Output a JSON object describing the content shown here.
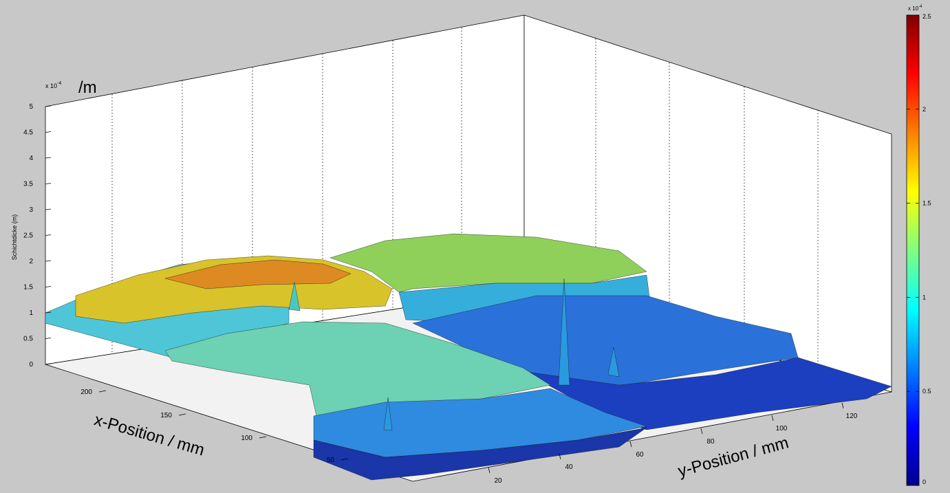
{
  "chart_data": {
    "type": "surface",
    "title": "",
    "zlabel": "Schichtdicke (m)",
    "z_unit_annotation": "/m",
    "z_exponent_label": "x 10",
    "z_exponent_power": "-4",
    "xlabel": "x-Position / mm",
    "ylabel": "y-Position / mm",
    "zlim": [
      0,
      5
    ],
    "z_ticks": [
      "0",
      "0.5",
      "1",
      "1.5",
      "2",
      "2.5",
      "3",
      "3.5",
      "4",
      "4.5",
      "5"
    ],
    "x_ticks": [
      "50",
      "100",
      "150",
      "200"
    ],
    "y_ticks": [
      "20",
      "40",
      "60",
      "80",
      "100",
      "120"
    ],
    "grid": true,
    "colorbar": {
      "colormap": "jet",
      "range": [
        0,
        2.5
      ],
      "ticks": [
        "0",
        "0.5",
        "1",
        "1.5",
        "2",
        "2.5"
      ],
      "exponent_label": "x 10",
      "exponent_power": "-4"
    },
    "colors": {
      "background": "#c8c8c8",
      "axes": "#ffffff",
      "jet_low": "#00008f",
      "jet_high": "#800000"
    }
  }
}
